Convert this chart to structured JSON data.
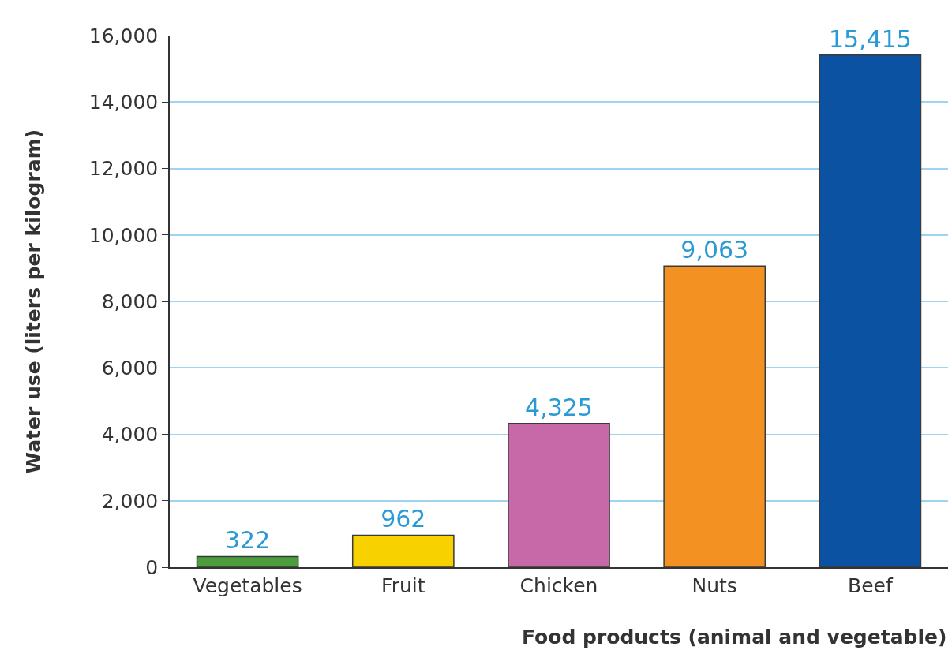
{
  "chart_data": {
    "type": "bar",
    "xlabel": "Food products (animal and vegetable)",
    "ylabel": "Water use (liters per kilogram)",
    "categories": [
      "Vegetables",
      "Fruit",
      "Chicken",
      "Nuts",
      "Beef"
    ],
    "values": [
      322,
      962,
      4325,
      9063,
      15415
    ],
    "colors": [
      "#4c9e3c",
      "#f7d100",
      "#c768a8",
      "#f39122",
      "#0b52a2"
    ],
    "value_labels": [
      "322",
      "962",
      "4,325",
      "9,063",
      "15,415"
    ],
    "ylim": [
      0,
      16000
    ],
    "yticks": [
      {
        "value": 0,
        "label": "0"
      },
      {
        "value": 2000,
        "label": "2,000"
      },
      {
        "value": 4000,
        "label": "4,000"
      },
      {
        "value": 6000,
        "label": "6,000"
      },
      {
        "value": 8000,
        "label": "8,000"
      },
      {
        "value": 10000,
        "label": "10,000"
      },
      {
        "value": 12000,
        "label": "12,000"
      },
      {
        "value": 14000,
        "label": "14,000"
      },
      {
        "value": 16000,
        "label": "16,000"
      }
    ],
    "grid": "y"
  }
}
